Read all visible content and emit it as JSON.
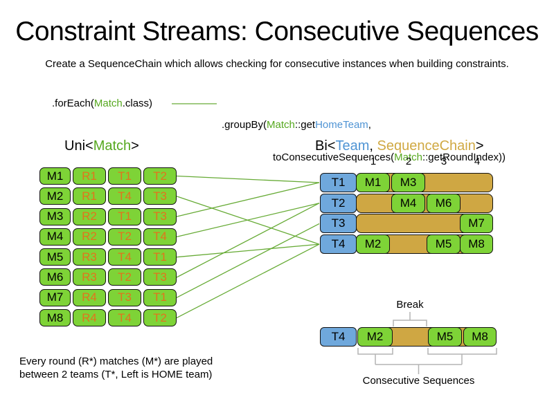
{
  "title": "Constraint Streams: Consecutive Sequences",
  "subtitle": "Create a SequenceChain which allows checking for consecutive instances when building constraints.",
  "code": {
    "foreach_pre": ".forEach(",
    "foreach_match": "Match",
    "foreach_post": ".class)",
    "groupby_pre": ".groupBy(",
    "groupby_match": "Match",
    "groupby_mid": "::get",
    "groupby_hometeam": "HomeTeam",
    "groupby_comma": ",",
    "line2_pre": "toConsecutiveSequences(",
    "line2_match": "Match",
    "line2_post": "::getRoundIndex))"
  },
  "uni": {
    "label_pre": "Uni<",
    "label_match": "Match",
    "label_post": ">",
    "rows": [
      [
        "M1",
        "R1",
        "T1",
        "T2"
      ],
      [
        "M2",
        "R1",
        "T4",
        "T3"
      ],
      [
        "M3",
        "R2",
        "T1",
        "T3"
      ],
      [
        "M4",
        "R2",
        "T2",
        "T4"
      ],
      [
        "M5",
        "R3",
        "T4",
        "T1"
      ],
      [
        "M6",
        "R3",
        "T2",
        "T3"
      ],
      [
        "M7",
        "R4",
        "T3",
        "T1"
      ],
      [
        "M8",
        "R4",
        "T4",
        "T2"
      ]
    ]
  },
  "bi": {
    "label_pre": "Bi<",
    "label_team": "Team",
    "label_comma": ", ",
    "label_chain": "SequenceChain",
    "label_post": ">",
    "columns": [
      "1",
      "2",
      "3",
      "4"
    ],
    "teams": [
      "T1",
      "T2",
      "T3",
      "T4"
    ],
    "rows": [
      {
        "team": "T1",
        "boxes": [
          {
            "label": "M1",
            "col": 1
          },
          {
            "label": "M3",
            "col": 2
          }
        ]
      },
      {
        "team": "T2",
        "boxes": [
          {
            "label": "M4",
            "col": 2
          },
          {
            "label": "M6",
            "col": 3
          }
        ]
      },
      {
        "team": "T3",
        "boxes": [
          {
            "label": "M7",
            "col": 4
          }
        ]
      },
      {
        "team": "T4",
        "boxes": [
          {
            "label": "M2",
            "col": 1
          },
          {
            "label": "M5",
            "col": 3
          },
          {
            "label": "M8",
            "col": 4
          }
        ]
      }
    ]
  },
  "connections": [
    {
      "match": "M1",
      "team": "T1"
    },
    {
      "match": "M2",
      "team": "T4"
    },
    {
      "match": "M3",
      "team": "T1"
    },
    {
      "match": "M4",
      "team": "T2"
    },
    {
      "match": "M5",
      "team": "T4"
    },
    {
      "match": "M6",
      "team": "T2"
    },
    {
      "match": "M7",
      "team": "T3"
    },
    {
      "match": "M8",
      "team": "T4"
    }
  ],
  "break_diagram": {
    "team": "T4",
    "break_label": "Break",
    "sequences_label": "Consecutive Sequences",
    "boxes": [
      "M2",
      "M5",
      "M8"
    ]
  },
  "note_line1": "Every round (R*) matches (M*) are played",
  "note_line2": "between 2 teams (T*, Left is HOME team)",
  "colors": {
    "box_green": "#7ed337",
    "box_blue": "#6fa8dc",
    "box_tan": "#cfa743",
    "text_orange": "#e2731c",
    "text_green": "#56a81f",
    "text_blue": "#4f94d4",
    "text_gold": "#d0a943",
    "connector_green": "#67ab36",
    "bracket_gray": "#b3b3b3"
  }
}
